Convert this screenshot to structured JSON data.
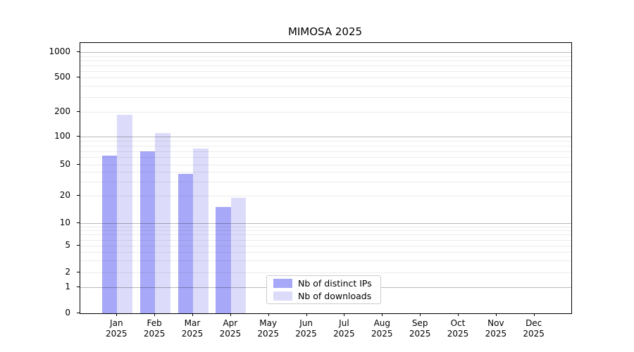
{
  "title": "MIMOSA 2025",
  "chart_data": {
    "type": "bar",
    "title": "MIMOSA 2025",
    "xlabel": "",
    "ylabel": "",
    "yscale": "symlog",
    "grid": "both",
    "legend_position": "lower center",
    "year": "2025",
    "categories": [
      "Jan 2025",
      "Feb 2025",
      "Mar 2025",
      "Apr 2025",
      "May 2025",
      "Jun 2025",
      "Jul 2025",
      "Aug 2025",
      "Sep 2025",
      "Oct 2025",
      "Nov 2025",
      "Dec 2025"
    ],
    "months": [
      "Jan",
      "Feb",
      "Mar",
      "Apr",
      "May",
      "Jun",
      "Jul",
      "Aug",
      "Sep",
      "Oct",
      "Nov",
      "Dec"
    ],
    "series": [
      {
        "name": "Nb of distinct IPs",
        "color": "#a8a8f8",
        "values": [
          62,
          70,
          38,
          15,
          0,
          0,
          0,
          0,
          0,
          0,
          0,
          0
        ]
      },
      {
        "name": "Nb of downloads",
        "color": "#dcdcfa",
        "values": [
          185,
          110,
          75,
          19,
          0,
          0,
          0,
          0,
          0,
          0,
          0,
          0
        ]
      }
    ],
    "ytick_labels": [
      "0",
      "1",
      "2",
      "5",
      "10",
      "20",
      "50",
      "100",
      "200",
      "500",
      "1000"
    ],
    "ytick_values": [
      0,
      1,
      2,
      5,
      10,
      20,
      50,
      100,
      200,
      500,
      1000
    ],
    "ylim": [
      0,
      1000
    ],
    "major_grid_values": [
      1,
      10,
      100,
      1000
    ],
    "minor_grid_values": [
      2,
      3,
      4,
      5,
      6,
      7,
      8,
      9,
      20,
      30,
      40,
      50,
      60,
      70,
      80,
      90,
      200,
      300,
      400,
      500,
      600,
      700,
      800,
      900
    ]
  },
  "legend": {
    "items": [
      {
        "label": "Nb of distinct IPs",
        "color": "#a8a8f8"
      },
      {
        "label": "Nb of downloads",
        "color": "#dcdcfa"
      }
    ]
  }
}
